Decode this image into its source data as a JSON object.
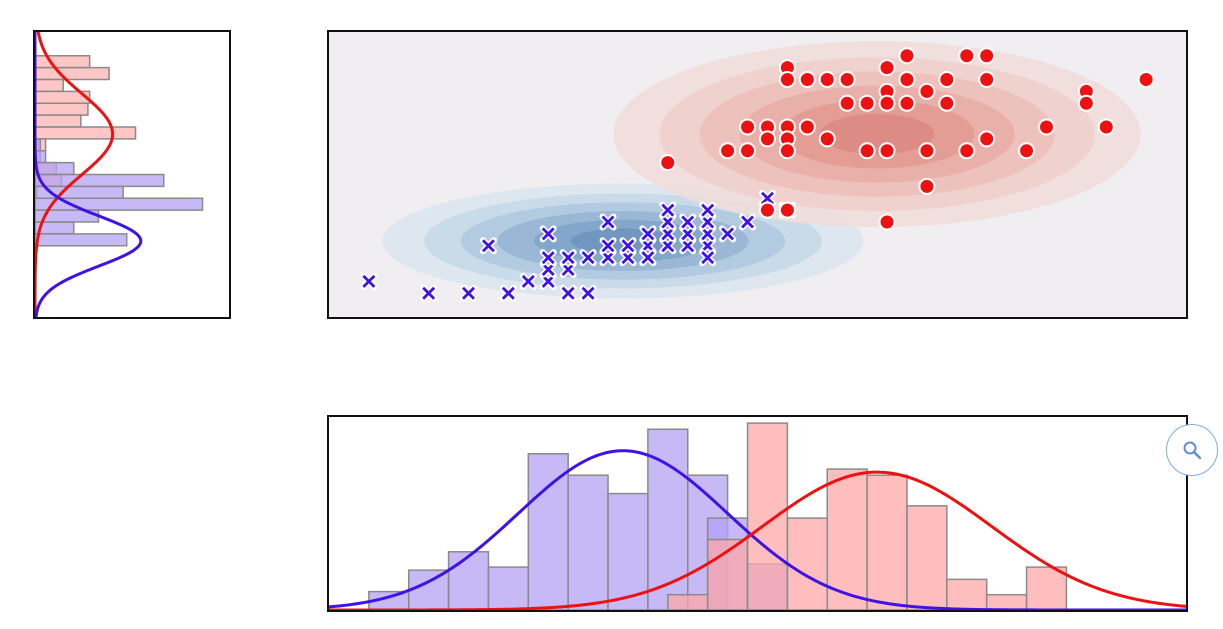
{
  "chart_data": [
    {
      "type": "scatter",
      "title": "",
      "xlabel": "",
      "ylabel": "",
      "grid": false,
      "xlim": [
        0,
        86
      ],
      "ylim": [
        0,
        24
      ],
      "density_contours": true,
      "series": [
        {
          "marker": "x",
          "color": "#3f12e6",
          "gaussian": {
            "mean": [
              29.5,
              6.4
            ],
            "std": [
              10.5,
              2.1
            ]
          },
          "points": [
            [
              4,
              3
            ],
            [
              10,
              2
            ],
            [
              14,
              2
            ],
            [
              18,
              2
            ],
            [
              20,
              3
            ],
            [
              22,
              3
            ],
            [
              24,
              2
            ],
            [
              22,
              4
            ],
            [
              24,
              4
            ],
            [
              26,
              2
            ],
            [
              16,
              6
            ],
            [
              22,
              5
            ],
            [
              24,
              5
            ],
            [
              26,
              5
            ],
            [
              28,
              5
            ],
            [
              30,
              5
            ],
            [
              32,
              5
            ],
            [
              28,
              6
            ],
            [
              30,
              6
            ],
            [
              32,
              6
            ],
            [
              34,
              6
            ],
            [
              36,
              6
            ],
            [
              38,
              6
            ],
            [
              32,
              7
            ],
            [
              34,
              7
            ],
            [
              36,
              7
            ],
            [
              38,
              7
            ],
            [
              40,
              7
            ],
            [
              22,
              7
            ],
            [
              28,
              8
            ],
            [
              34,
              8
            ],
            [
              36,
              8
            ],
            [
              38,
              8
            ],
            [
              42,
              8
            ],
            [
              34,
              9
            ],
            [
              38,
              9
            ],
            [
              46,
              9
            ],
            [
              32,
              5
            ],
            [
              38,
              5
            ],
            [
              44,
              10
            ]
          ]
        },
        {
          "marker": "o",
          "color": "#ee1111",
          "gaussian": {
            "mean": [
              55,
              15.4
            ],
            "std": [
              11.5,
              3.4
            ]
          },
          "points": [
            [
              58,
              22
            ],
            [
              64,
              22
            ],
            [
              66,
              22
            ],
            [
              46,
              21
            ],
            [
              56,
              21
            ],
            [
              46,
              20
            ],
            [
              48,
              20
            ],
            [
              50,
              20
            ],
            [
              52,
              20
            ],
            [
              58,
              20
            ],
            [
              62,
              20
            ],
            [
              66,
              20
            ],
            [
              56,
              19
            ],
            [
              60,
              19
            ],
            [
              76,
              19
            ],
            [
              52,
              18
            ],
            [
              54,
              18
            ],
            [
              56,
              18
            ],
            [
              58,
              18
            ],
            [
              62,
              18
            ],
            [
              76,
              18
            ],
            [
              82,
              20
            ],
            [
              42,
              16
            ],
            [
              44,
              16
            ],
            [
              46,
              16
            ],
            [
              48,
              16
            ],
            [
              72,
              16
            ],
            [
              78,
              16
            ],
            [
              44,
              15
            ],
            [
              46,
              15
            ],
            [
              50,
              15
            ],
            [
              66,
              15
            ],
            [
              40,
              14
            ],
            [
              42,
              14
            ],
            [
              46,
              14
            ],
            [
              54,
              14
            ],
            [
              56,
              14
            ],
            [
              60,
              14
            ],
            [
              64,
              14
            ],
            [
              70,
              14
            ],
            [
              34,
              13
            ],
            [
              60,
              11
            ],
            [
              44,
              9
            ],
            [
              46,
              9
            ],
            [
              56,
              8
            ]
          ]
        }
      ]
    },
    {
      "type": "bar",
      "orientation": "horizontal",
      "title": "",
      "ylim": [
        0,
        24
      ],
      "series": [
        {
          "color": "#ee1111",
          "bins": [
            [
              21,
              22,
              3.1
            ],
            [
              20,
              21,
              4.2
            ],
            [
              19,
              20,
              1.6
            ],
            [
              18,
              19,
              3.1
            ],
            [
              17,
              18,
              3.0
            ],
            [
              16,
              17,
              2.6
            ],
            [
              15,
              16,
              5.7
            ],
            [
              14,
              15,
              0.6
            ],
            [
              13,
              14,
              0.3
            ],
            [
              12,
              13,
              1.2
            ],
            [
              11,
              12,
              1.5
            ],
            [
              10,
              11,
              0.1
            ]
          ]
        },
        {
          "color": "#8a5cf5",
          "bins": [
            [
              14,
              15,
              0.3
            ],
            [
              13,
              14,
              0.6
            ],
            [
              12,
              13,
              2.2
            ],
            [
              11,
              12,
              7.3
            ],
            [
              10,
              11,
              5.0
            ],
            [
              9,
              10,
              9.5
            ],
            [
              8,
              9,
              3.6
            ],
            [
              7,
              8,
              2.2
            ],
            [
              6,
              7,
              5.2
            ]
          ]
        }
      ],
      "curves": [
        {
          "color": "#ee1111",
          "mean": 15.4,
          "std": 3.4,
          "peak": 4.4
        },
        {
          "color": "#3f12e6",
          "mean": 6.4,
          "std": 2.1,
          "peak": 6.0
        }
      ]
    },
    {
      "type": "bar",
      "title": "",
      "xlim": [
        0,
        86
      ],
      "series": [
        {
          "color": "#8a5cf5",
          "bins": [
            [
              4,
              8,
              0.6
            ],
            [
              8,
              12,
              1.3
            ],
            [
              12,
              16,
              1.9
            ],
            [
              16,
              20,
              1.4
            ],
            [
              20,
              24,
              5.1
            ],
            [
              24,
              28,
              4.4
            ],
            [
              28,
              32,
              3.8
            ],
            [
              32,
              36,
              5.9
            ],
            [
              36,
              40,
              4.4
            ],
            [
              38,
              42,
              3.0
            ],
            [
              42,
              46,
              1.5
            ]
          ]
        },
        {
          "color": "#ee1111",
          "bins": [
            [
              34,
              38,
              0.5
            ],
            [
              38,
              42,
              2.3
            ],
            [
              42,
              46,
              6.1
            ],
            [
              46,
              50,
              3.0
            ],
            [
              50,
              54,
              4.6
            ],
            [
              54,
              58,
              4.4
            ],
            [
              58,
              62,
              3.4
            ],
            [
              62,
              66,
              1.0
            ],
            [
              66,
              70,
              0.5
            ],
            [
              70,
              74,
              1.4
            ]
          ]
        }
      ],
      "curves": [
        {
          "color": "#3f12e6",
          "mean": 29.5,
          "std": 10.5,
          "peak": 5.2
        },
        {
          "color": "#ee1111",
          "mean": 55,
          "std": 11.5,
          "peak": 4.5
        }
      ]
    }
  ],
  "toolbar": {
    "zoom_icon": "magnifier-icon"
  }
}
